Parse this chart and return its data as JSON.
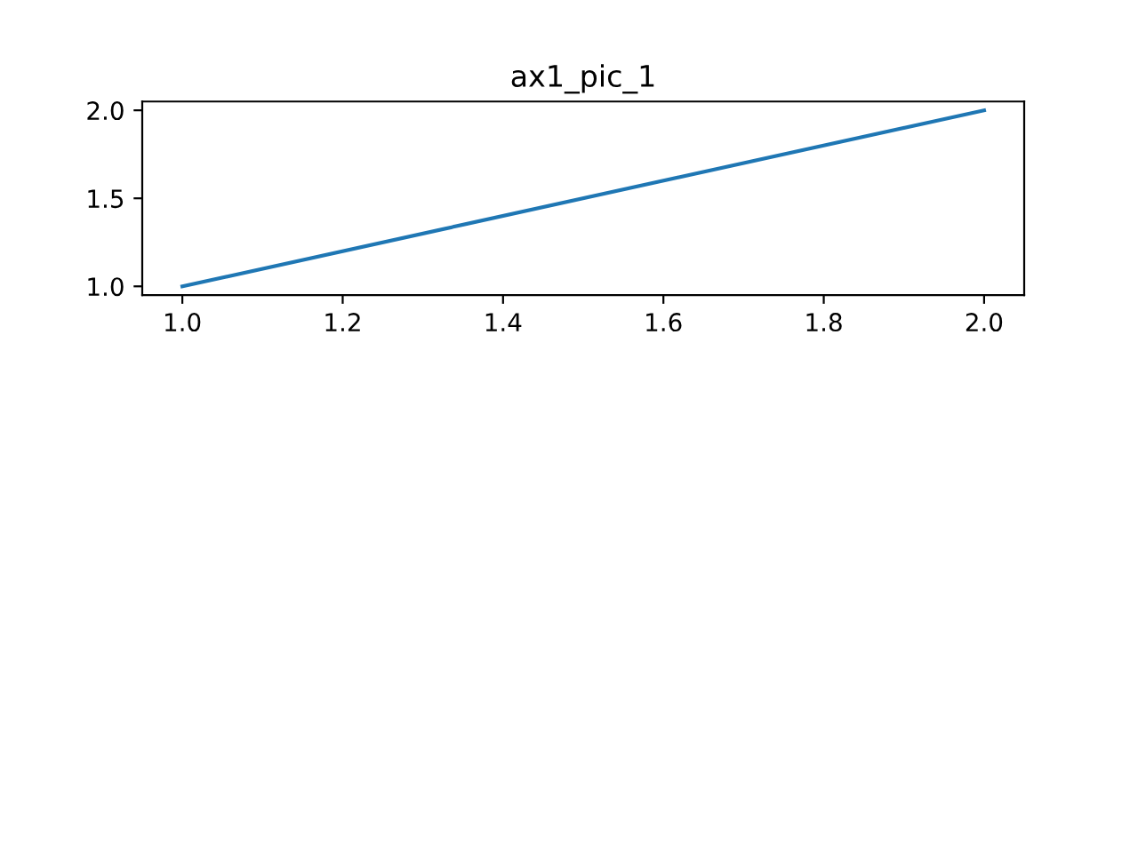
{
  "chart_data": {
    "type": "line",
    "title": "ax1_pic_1",
    "x": [
      1.0,
      2.0
    ],
    "series": [
      {
        "color": "#1f77b4",
        "values": [
          1.0,
          2.0
        ]
      }
    ],
    "xlim": [
      0.95,
      2.05
    ],
    "ylim": [
      0.95,
      2.05
    ],
    "xticks": [
      {
        "value": 1.0,
        "label": "1.0"
      },
      1.2,
      1.4,
      1.6,
      1.8,
      {
        "value": 2.0,
        "label": "2.0"
      }
    ],
    "yticks": [
      {
        "value": 1.0,
        "label": "1.0"
      },
      1.5,
      {
        "value": 2.0,
        "label": "2.0"
      }
    ],
    "grid": false,
    "legend": false
  }
}
